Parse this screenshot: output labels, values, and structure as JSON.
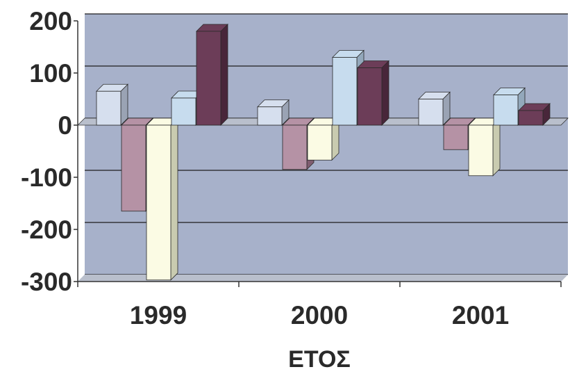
{
  "chart_data": {
    "type": "bar",
    "categories": [
      "1999",
      "2000",
      "2001"
    ],
    "series": [
      {
        "values": [
          65,
          35,
          50
        ]
      },
      {
        "values": [
          -165,
          -85,
          -47
        ]
      },
      {
        "values": [
          -297,
          -67,
          -97
        ]
      },
      {
        "values": [
          52,
          130,
          58
        ]
      },
      {
        "values": [
          180,
          110,
          28
        ]
      }
    ],
    "y_ticks": [
      "200",
      "100",
      "0",
      "-100",
      "-200",
      "-300"
    ],
    "ylim": [
      -300,
      200
    ],
    "xlabel": "ΕΤΟΣ",
    "ylabel": "",
    "grid": true,
    "three_d": true,
    "colors": {
      "wall": "#a7b1ca",
      "floor": "#b9bfcc",
      "gridline": "#1e1e1e",
      "series": [
        "#d6dfee",
        "#b592a5",
        "#fbfbe4",
        "#c7dcee",
        "#6c3d58"
      ],
      "series_dark": [
        "#9aa3b4",
        "#7f5d70",
        "#c9cbb0",
        "#93a8bb",
        "#48263a"
      ]
    }
  }
}
